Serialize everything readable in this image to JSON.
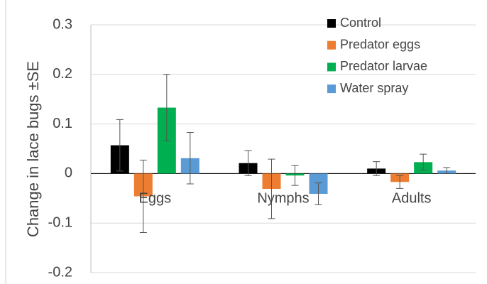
{
  "chart_data": {
    "type": "bar",
    "y_label": "Change in lace bugs ±SE",
    "categories": [
      "Eggs",
      "Nymphs",
      "Adults"
    ],
    "series": [
      {
        "name": "Control",
        "color": "#000000",
        "values": [
          0.057,
          0.021,
          0.01
        ],
        "errors": [
          0.052,
          0.025,
          0.014
        ]
      },
      {
        "name": "Predator eggs",
        "color": "#ed7d31",
        "values": [
          -0.046,
          -0.031,
          -0.017
        ],
        "errors": [
          0.073,
          0.06,
          0.013
        ]
      },
      {
        "name": "Predator larvae",
        "color": "#00b050",
        "values": [
          0.133,
          -0.004,
          0.023
        ],
        "errors": [
          0.067,
          0.02,
          0.016
        ]
      },
      {
        "name": "Water spray",
        "color": "#5b9bd5",
        "values": [
          0.031,
          -0.041,
          0.006
        ],
        "errors": [
          0.052,
          0.022,
          0.006
        ]
      }
    ],
    "ylim": [
      -0.2,
      0.3
    ],
    "yticks": [
      -0.2,
      -0.1,
      0,
      0.1,
      0.2,
      0.3
    ],
    "grid": true,
    "legend": "top-right"
  }
}
